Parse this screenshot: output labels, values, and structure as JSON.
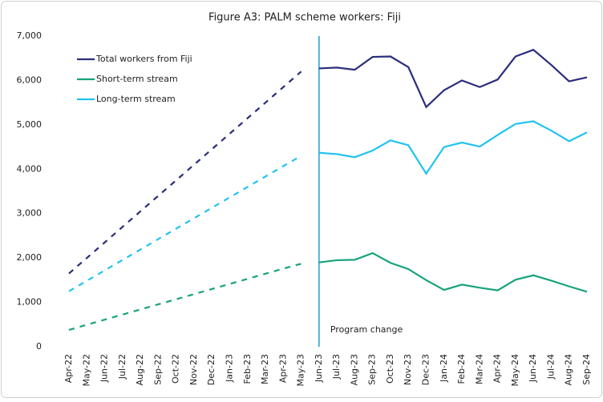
{
  "chart_data": {
    "type": "line",
    "title": "Figure A3: PALM scheme workers: Fiji",
    "categories": [
      "Apr-22",
      "May-22",
      "Jun-22",
      "Jul-22",
      "Aug-22",
      "Sep-22",
      "Oct-22",
      "Nov-22",
      "Dec-22",
      "Jan-23",
      "Feb-23",
      "Mar-23",
      "Apr-23",
      "May-23",
      "Jun-23",
      "Jul-23",
      "Aug-23",
      "Sep-23",
      "Oct-23",
      "Nov-23",
      "Dec-23",
      "Jan-24",
      "Feb-24",
      "Mar-24",
      "Apr-24",
      "May-24",
      "Jun-24",
      "Jul-24",
      "Aug-24",
      "Sep-24"
    ],
    "series": [
      {
        "name": "Total workers from Fiji",
        "color": "#2b2d7c",
        "values": [
          1650,
          2000,
          2350,
          2700,
          3050,
          3400,
          3750,
          4100,
          4450,
          4800,
          5150,
          5500,
          5850,
          6200,
          6270,
          6290,
          6240,
          6530,
          6540,
          6300,
          5400,
          5780,
          6000,
          5850,
          6020,
          6540,
          6690,
          6350,
          5980,
          6070
        ]
      },
      {
        "name": "Short-term stream",
        "color": "#17a37a",
        "values": [
          380,
          495,
          610,
          725,
          840,
          955,
          1070,
          1185,
          1300,
          1415,
          1530,
          1645,
          1760,
          1870,
          1900,
          1950,
          1960,
          2110,
          1890,
          1750,
          1500,
          1280,
          1400,
          1330,
          1270,
          1510,
          1610,
          1490,
          1360,
          1240
        ]
      },
      {
        "name": "Long-term stream",
        "color": "#22c3f0",
        "values": [
          1250,
          1485,
          1720,
          1955,
          2190,
          2425,
          2660,
          2895,
          3130,
          3365,
          3600,
          3835,
          4070,
          4300,
          4370,
          4340,
          4270,
          4420,
          4650,
          4540,
          3900,
          4500,
          4600,
          4510,
          4770,
          5020,
          5080,
          4870,
          4630,
          4830
        ]
      }
    ],
    "annotation": {
      "text": "Program change",
      "x": "Jun-23",
      "color": "#1e9fd0"
    },
    "ylim": [
      0,
      7000
    ],
    "yticks": [
      0,
      {
        "value": 1000,
        "label": "1,000"
      },
      {
        "value": 2000,
        "label": "2,000"
      },
      {
        "value": 3000,
        "label": "3,000"
      },
      {
        "value": 4000,
        "label": "4,000"
      },
      {
        "value": 5000,
        "label": "5,000"
      },
      {
        "value": 6000,
        "label": "6,000"
      },
      {
        "value": 7000,
        "label": "7,000"
      }
    ],
    "grid": false,
    "legend": "top-left"
  }
}
